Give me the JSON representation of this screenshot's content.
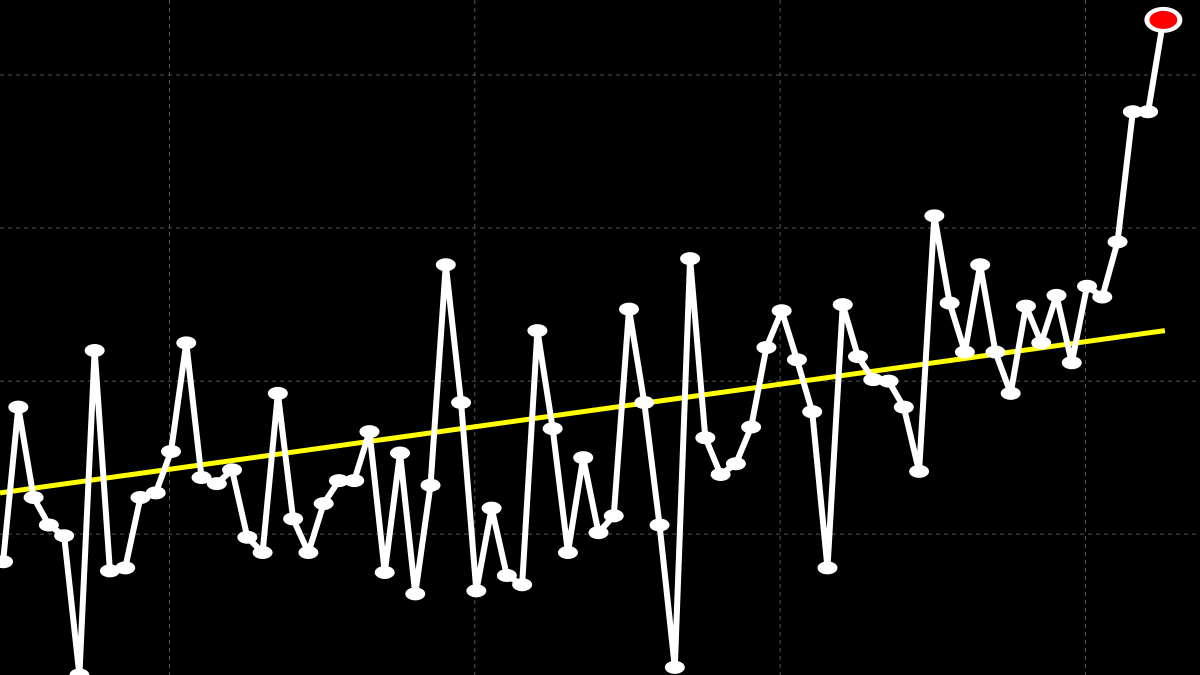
{
  "chart_data": {
    "type": "line",
    "title": "",
    "xlabel": "",
    "ylabel": "",
    "xlim": [
      -0.2,
      78.4
    ],
    "ylim": [
      -0.92,
      3.49
    ],
    "grid": true,
    "background": "#000000",
    "series": [
      {
        "color": "#ffffff",
        "highlight_last_color": "#ff0000",
        "x": [
          0,
          1,
          2,
          3,
          4,
          5,
          6,
          7,
          8,
          9,
          10,
          11,
          12,
          13,
          14,
          15,
          16,
          17,
          18,
          19,
          20,
          21,
          22,
          23,
          24,
          25,
          26,
          27,
          28,
          29,
          30,
          31,
          32,
          33,
          34,
          35,
          36,
          37,
          38,
          39,
          40,
          41,
          42,
          43,
          44,
          45,
          46,
          47,
          48,
          49,
          50,
          51,
          52,
          53,
          54,
          55,
          56,
          57,
          58,
          59,
          60,
          61,
          62,
          63,
          64,
          65,
          66,
          67,
          68,
          69,
          70,
          71,
          72,
          73,
          74,
          75,
          76
        ],
        "values": [
          -0.18,
          0.83,
          0.24,
          0.06,
          -0.01,
          -0.92,
          1.2,
          -0.24,
          -0.22,
          0.24,
          0.27,
          0.54,
          1.25,
          0.37,
          0.33,
          0.42,
          -0.02,
          -0.12,
          0.92,
          0.1,
          -0.12,
          0.2,
          0.35,
          0.35,
          0.67,
          -0.25,
          0.53,
          -0.39,
          0.32,
          1.76,
          0.86,
          -0.37,
          0.17,
          -0.27,
          -0.33,
          1.33,
          0.69,
          -0.12,
          0.5,
          0.01,
          0.12,
          1.47,
          0.86,
          0.06,
          -0.87,
          1.8,
          0.63,
          0.39,
          0.46,
          0.7,
          1.22,
          1.46,
          1.14,
          0.8,
          -0.22,
          1.5,
          1.16,
          1.01,
          1.0,
          0.83,
          0.41,
          2.08,
          1.51,
          1.19,
          1.76,
          1.19,
          0.92,
          1.49,
          1.25,
          1.56,
          1.12,
          1.62,
          1.55,
          1.91,
          2.76,
          2.76,
          3.36
        ]
      }
    ],
    "trend_line": {
      "color": "#ffff00",
      "x": [
        -0.2,
        76.1
      ],
      "y": [
        0.27,
        1.33
      ]
    }
  }
}
